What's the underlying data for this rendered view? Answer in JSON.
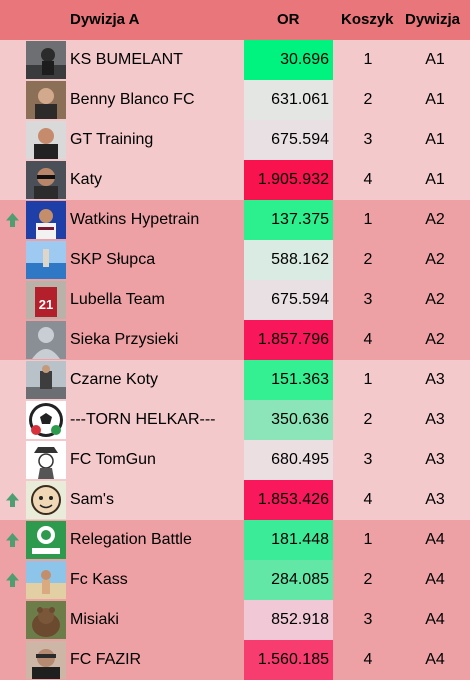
{
  "header": {
    "group": "Dywizja A",
    "or": "OR",
    "koszyk": "Koszyk",
    "dywizja": "Dywizja"
  },
  "colors": {
    "header_bg": "#e9767a",
    "band_light": "#f4c9cb",
    "band_dark": "#eea1a4",
    "promotion_arrow": "#4f9e72"
  },
  "rows": [
    {
      "name": "KS BUMELANT",
      "or": "30.696",
      "koszyk": "1",
      "dywizja": "A1",
      "up": false,
      "or_color": "#00f37f",
      "avatar": "a"
    },
    {
      "name": "Benny Blanco FC",
      "or": "631.061",
      "koszyk": "2",
      "dywizja": "A1",
      "up": false,
      "or_color": "#e4e6e3",
      "avatar": "b"
    },
    {
      "name": "GT Training",
      "or": "675.594",
      "koszyk": "3",
      "dywizja": "A1",
      "up": false,
      "or_color": "#e8e0e2",
      "avatar": "c"
    },
    {
      "name": "Katy",
      "or": "1.905.932",
      "koszyk": "4",
      "dywizja": "A1",
      "up": false,
      "or_color": "#f8124e",
      "avatar": "d"
    },
    {
      "name": "Watkins Hypetrain",
      "or": "137.375",
      "koszyk": "1",
      "dywizja": "A2",
      "up": true,
      "or_color": "#2cef8d",
      "avatar": "e"
    },
    {
      "name": "SKP Słupca",
      "or": "588.162",
      "koszyk": "2",
      "dywizja": "A2",
      "up": false,
      "or_color": "#d9ebe2",
      "avatar": "f"
    },
    {
      "name": "Lubella Team",
      "or": "675.594",
      "koszyk": "3",
      "dywizja": "A2",
      "up": false,
      "or_color": "#e8e0e2",
      "avatar": "g"
    },
    {
      "name": "Sieka Przysieki",
      "or": "1.857.796",
      "koszyk": "4",
      "dywizja": "A2",
      "up": false,
      "or_color": "#f8175a",
      "avatar": "h"
    },
    {
      "name": "Czarne Koty",
      "or": "151.363",
      "koszyk": "1",
      "dywizja": "A3",
      "up": false,
      "or_color": "#35ef93",
      "avatar": "i"
    },
    {
      "name": "---TORN HELKAR---",
      "or": "350.636",
      "koszyk": "2",
      "dywizja": "A3",
      "up": false,
      "or_color": "#8ce5b8",
      "avatar": "j"
    },
    {
      "name": "FC TomGun",
      "or": "680.495",
      "koszyk": "3",
      "dywizja": "A3",
      "up": false,
      "or_color": "#ebdfe2",
      "avatar": "k"
    },
    {
      "name": "Sam's",
      "or": "1.853.426",
      "koszyk": "4",
      "dywizja": "A3",
      "up": true,
      "or_color": "#f8185b",
      "avatar": "l"
    },
    {
      "name": "Relegation Battle",
      "or": "181.448",
      "koszyk": "1",
      "dywizja": "A4",
      "up": true,
      "or_color": "#3ceb98",
      "avatar": "m"
    },
    {
      "name": "Fc Kass",
      "or": "284.085",
      "koszyk": "2",
      "dywizja": "A4",
      "up": true,
      "or_color": "#62e7a7",
      "avatar": "n"
    },
    {
      "name": "Misiaki",
      "or": "852.918",
      "koszyk": "3",
      "dywizja": "A4",
      "up": false,
      "or_color": "#f0c8d6",
      "avatar": "o"
    },
    {
      "name": "FC FAZIR",
      "or": "1.560.185",
      "koszyk": "4",
      "dywizja": "A4",
      "up": false,
      "or_color": "#f73c6f",
      "avatar": "p"
    }
  ]
}
